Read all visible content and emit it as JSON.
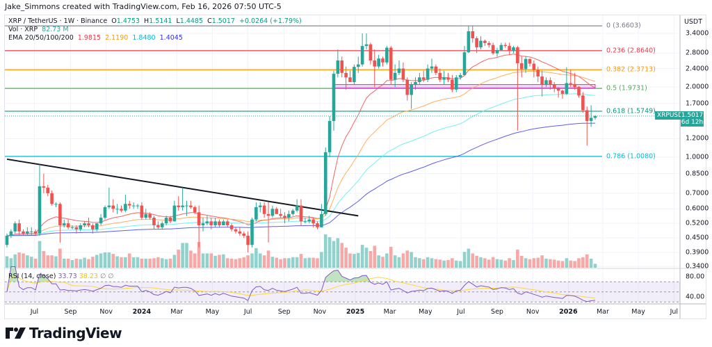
{
  "credit": "Jake_Simmons created with TradingView.com, Feb 16, 2026 07:50 UTC-5",
  "legend": {
    "symbol": "XRP / TetherUS · 1W · Binance",
    "o_label": "O",
    "o": "1.4753",
    "h_label": "H",
    "h": "1.5141",
    "l_label": "L",
    "l": "1.4485",
    "c_label": "C",
    "c": "1.5017",
    "change": "+0.0264 (+1.79%)",
    "vol_label": "Vol · XRP",
    "vol": "82.73 M",
    "ema_label": "EMA 20/50/100/200",
    "ema20": "1.9815",
    "ema50": "2.1190",
    "ema100": "1.8480",
    "ema200": "1.4045"
  },
  "rsi_legend": {
    "label": "RSI (14, close)",
    "rsi": "33.73",
    "rsi_ma": "38.23",
    "icon1": "∅",
    "icon2": "∅"
  },
  "price_axis": {
    "unit": "USDT",
    "ticks": [
      "3.4000",
      "2.8000",
      "2.4000",
      "2.0000",
      "1.7000",
      "1.2000",
      "1.0000",
      "0.8500",
      "0.7000",
      "0.6000",
      "0.5200",
      "0.4500",
      "0.3900",
      "0.3400"
    ]
  },
  "rsi_axis": {
    "ticks": [
      "80.00",
      "40.00"
    ]
  },
  "current_price": {
    "symbol": "XRPUSDT",
    "price": "1.5017",
    "countdown": "6d 12h"
  },
  "time_axis": [
    {
      "label": "Jul",
      "date": "2023-07-01"
    },
    {
      "label": "Sep",
      "date": "2023-09-01"
    },
    {
      "label": "Nov",
      "date": "2023-11-01"
    },
    {
      "label": "2024",
      "date": "2024-01-01"
    },
    {
      "label": "Mar",
      "date": "2024-03-01"
    },
    {
      "label": "May",
      "date": "2024-05-01"
    },
    {
      "label": "Jul",
      "date": "2024-07-01"
    },
    {
      "label": "Sep",
      "date": "2024-09-01"
    },
    {
      "label": "Nov",
      "date": "2024-11-01"
    },
    {
      "label": "2025",
      "date": "2025-01-01"
    },
    {
      "label": "Mar",
      "date": "2025-03-01"
    },
    {
      "label": "May",
      "date": "2025-05-01"
    },
    {
      "label": "Jul",
      "date": "2025-07-01"
    },
    {
      "label": "Sep",
      "date": "2025-09-01"
    },
    {
      "label": "Nov",
      "date": "2025-11-01"
    },
    {
      "label": "2026",
      "date": "2026-01-01"
    },
    {
      "label": "Mar",
      "date": "2026-03-01"
    },
    {
      "label": "May",
      "date": "2026-05-01"
    },
    {
      "label": "Jul",
      "date": "2026-07-01"
    }
  ],
  "fib_levels": [
    {
      "label": "0 (3.6603)",
      "price": 3.6603,
      "color": "#787b86"
    },
    {
      "label": "0.236 (2.8640)",
      "price": 2.864,
      "color": "#f23645"
    },
    {
      "label": "0.382 (2.3713)",
      "price": 2.3713,
      "color": "#ff9800"
    },
    {
      "label": "0.5 (1.9731)",
      "price": 1.9731,
      "color": "#4caf50"
    },
    {
      "label": "0.618 (1.5749)",
      "price": 1.5749,
      "color": "#089981"
    },
    {
      "label": "0.786 (1.0080)",
      "price": 1.008,
      "color": "#00bcd4"
    }
  ],
  "brand": "TradingView",
  "colors": {
    "up": "#26a69a",
    "down": "#ef5350",
    "ema20": "#f55252",
    "ema50": "#ffa54f",
    "ema100": "#66f0f0",
    "ema200": "#4b4bf0",
    "rsi": "#7e57c2",
    "rsi_ma": "#fdd835",
    "zone": "#c040c0",
    "trend": "#131722"
  },
  "chart_data": {
    "type": "candlestick",
    "interval": "1W",
    "first_week": "2023-05-15",
    "scale": "log",
    "ylim": [
      0.34,
      3.7
    ],
    "grid": true,
    "ohlc": [
      [
        0.42,
        0.47,
        0.41,
        0.46
      ],
      [
        0.46,
        0.49,
        0.45,
        0.48
      ],
      [
        0.48,
        0.53,
        0.47,
        0.52
      ],
      [
        0.52,
        0.54,
        0.46,
        0.48
      ],
      [
        0.48,
        0.49,
        0.46,
        0.47
      ],
      [
        0.47,
        0.5,
        0.46,
        0.48
      ],
      [
        0.48,
        0.5,
        0.46,
        0.48
      ],
      [
        0.48,
        0.49,
        0.46,
        0.47
      ],
      [
        0.47,
        0.93,
        0.46,
        0.75
      ],
      [
        0.75,
        0.85,
        0.7,
        0.74
      ],
      [
        0.74,
        0.76,
        0.68,
        0.7
      ],
      [
        0.7,
        0.72,
        0.62,
        0.63
      ],
      [
        0.63,
        0.64,
        0.61,
        0.63
      ],
      [
        0.63,
        0.64,
        0.43,
        0.51
      ],
      [
        0.51,
        0.54,
        0.5,
        0.52
      ],
      [
        0.52,
        0.54,
        0.49,
        0.5
      ],
      [
        0.5,
        0.51,
        0.49,
        0.5
      ],
      [
        0.5,
        0.51,
        0.47,
        0.49
      ],
      [
        0.49,
        0.52,
        0.48,
        0.51
      ],
      [
        0.51,
        0.53,
        0.5,
        0.52
      ],
      [
        0.52,
        0.55,
        0.5,
        0.51
      ],
      [
        0.51,
        0.52,
        0.47,
        0.49
      ],
      [
        0.49,
        0.52,
        0.48,
        0.52
      ],
      [
        0.52,
        0.57,
        0.51,
        0.55
      ],
      [
        0.55,
        0.62,
        0.54,
        0.61
      ],
      [
        0.61,
        0.74,
        0.6,
        0.62
      ],
      [
        0.62,
        0.66,
        0.58,
        0.6
      ],
      [
        0.6,
        0.63,
        0.57,
        0.6
      ],
      [
        0.6,
        0.62,
        0.58,
        0.59
      ],
      [
        0.59,
        0.69,
        0.58,
        0.63
      ],
      [
        0.63,
        0.65,
        0.6,
        0.62
      ],
      [
        0.62,
        0.64,
        0.6,
        0.62
      ],
      [
        0.62,
        0.63,
        0.6,
        0.62
      ],
      [
        0.62,
        0.64,
        0.54,
        0.55
      ],
      [
        0.55,
        0.6,
        0.54,
        0.57
      ],
      [
        0.57,
        0.58,
        0.54,
        0.55
      ],
      [
        0.55,
        0.56,
        0.49,
        0.51
      ],
      [
        0.51,
        0.53,
        0.49,
        0.5
      ],
      [
        0.5,
        0.53,
        0.49,
        0.52
      ],
      [
        0.52,
        0.56,
        0.51,
        0.55
      ],
      [
        0.55,
        0.56,
        0.52,
        0.53
      ],
      [
        0.53,
        0.65,
        0.53,
        0.62
      ],
      [
        0.62,
        0.68,
        0.59,
        0.61
      ],
      [
        0.61,
        0.74,
        0.59,
        0.62
      ],
      [
        0.62,
        0.65,
        0.56,
        0.62
      ],
      [
        0.62,
        0.65,
        0.6,
        0.61
      ],
      [
        0.61,
        0.62,
        0.57,
        0.58
      ],
      [
        0.58,
        0.62,
        0.41,
        0.51
      ],
      [
        0.51,
        0.55,
        0.48,
        0.52
      ],
      [
        0.52,
        0.56,
        0.51,
        0.53
      ],
      [
        0.53,
        0.55,
        0.49,
        0.51
      ],
      [
        0.51,
        0.55,
        0.5,
        0.53
      ],
      [
        0.53,
        0.54,
        0.5,
        0.51
      ],
      [
        0.51,
        0.54,
        0.51,
        0.53
      ],
      [
        0.53,
        0.54,
        0.5,
        0.51
      ],
      [
        0.51,
        0.52,
        0.48,
        0.49
      ],
      [
        0.49,
        0.5,
        0.47,
        0.48
      ],
      [
        0.48,
        0.5,
        0.46,
        0.47
      ],
      [
        0.47,
        0.48,
        0.45,
        0.46
      ],
      [
        0.46,
        0.48,
        0.39,
        0.42
      ],
      [
        0.42,
        0.55,
        0.41,
        0.54
      ],
      [
        0.54,
        0.64,
        0.53,
        0.61
      ],
      [
        0.61,
        0.64,
        0.58,
        0.62
      ],
      [
        0.62,
        0.64,
        0.55,
        0.57
      ],
      [
        0.57,
        0.64,
        0.43,
        0.56
      ],
      [
        0.56,
        0.62,
        0.55,
        0.6
      ],
      [
        0.6,
        0.61,
        0.57,
        0.57
      ],
      [
        0.57,
        0.6,
        0.55,
        0.56
      ],
      [
        0.56,
        0.58,
        0.52,
        0.55
      ],
      [
        0.55,
        0.59,
        0.53,
        0.57
      ],
      [
        0.57,
        0.6,
        0.56,
        0.59
      ],
      [
        0.59,
        0.66,
        0.58,
        0.62
      ],
      [
        0.62,
        0.66,
        0.51,
        0.53
      ],
      [
        0.53,
        0.55,
        0.52,
        0.53
      ],
      [
        0.53,
        0.56,
        0.52,
        0.54
      ],
      [
        0.54,
        0.55,
        0.5,
        0.52
      ],
      [
        0.52,
        0.53,
        0.49,
        0.5
      ],
      [
        0.5,
        0.63,
        0.5,
        0.57
      ],
      [
        0.57,
        1.1,
        0.56,
        1.05
      ],
      [
        1.05,
        1.5,
        1.0,
        1.43
      ],
      [
        1.43,
        2.35,
        1.3,
        2.28
      ],
      [
        2.28,
        2.9,
        2.2,
        2.6
      ],
      [
        2.6,
        2.7,
        2.2,
        2.3
      ],
      [
        2.3,
        2.45,
        1.95,
        2.2
      ],
      [
        2.2,
        2.35,
        2.1,
        2.1
      ],
      [
        2.1,
        2.5,
        2.05,
        2.44
      ],
      [
        2.44,
        2.7,
        2.3,
        2.5
      ],
      [
        2.5,
        3.4,
        2.45,
        3.0
      ],
      [
        3.0,
        3.4,
        2.9,
        3.05
      ],
      [
        3.05,
        3.1,
        2.5,
        2.6
      ],
      [
        2.6,
        2.9,
        2.0,
        2.45
      ],
      [
        2.45,
        2.75,
        2.4,
        2.65
      ],
      [
        2.65,
        2.7,
        2.45,
        2.55
      ],
      [
        2.55,
        3.0,
        2.5,
        2.95
      ],
      [
        2.95,
        3.0,
        2.05,
        2.15
      ],
      [
        2.15,
        2.5,
        2.0,
        2.3
      ],
      [
        2.3,
        2.6,
        2.25,
        2.4
      ],
      [
        2.4,
        2.55,
        2.1,
        2.15
      ],
      [
        2.15,
        2.2,
        1.75,
        1.85
      ],
      [
        1.85,
        2.1,
        1.61,
        2.05
      ],
      [
        2.05,
        2.2,
        1.95,
        2.1
      ],
      [
        2.1,
        2.3,
        2.05,
        2.2
      ],
      [
        2.2,
        2.35,
        2.1,
        2.15
      ],
      [
        2.15,
        2.5,
        2.1,
        2.4
      ],
      [
        2.4,
        2.65,
        2.3,
        2.45
      ],
      [
        2.45,
        2.5,
        2.25,
        2.3
      ],
      [
        2.3,
        2.4,
        2.1,
        2.15
      ],
      [
        2.15,
        2.35,
        2.05,
        2.2
      ],
      [
        2.2,
        2.3,
        2.1,
        2.15
      ],
      [
        2.15,
        2.25,
        1.9,
        1.95
      ],
      [
        1.95,
        2.25,
        1.9,
        2.2
      ],
      [
        2.2,
        2.3,
        2.15,
        2.25
      ],
      [
        2.25,
        3.0,
        2.25,
        2.82
      ],
      [
        2.82,
        3.66,
        2.8,
        3.47
      ],
      [
        3.47,
        3.66,
        3.1,
        3.24
      ],
      [
        3.24,
        3.3,
        2.8,
        2.96
      ],
      [
        2.96,
        3.3,
        2.9,
        3.16
      ],
      [
        3.16,
        3.2,
        3.0,
        3.09
      ],
      [
        3.09,
        3.15,
        2.95,
        3.03
      ],
      [
        3.03,
        3.1,
        2.75,
        2.79
      ],
      [
        2.79,
        2.95,
        2.7,
        2.88
      ],
      [
        2.88,
        3.1,
        2.85,
        3.03
      ],
      [
        3.03,
        3.1,
        2.95,
        3.0
      ],
      [
        3.0,
        3.1,
        2.75,
        2.86
      ],
      [
        2.86,
        3.0,
        2.8,
        2.96
      ],
      [
        2.96,
        3.0,
        1.3,
        2.53
      ],
      [
        2.53,
        2.7,
        2.2,
        2.39
      ],
      [
        2.39,
        2.7,
        2.3,
        2.64
      ],
      [
        2.64,
        2.65,
        2.45,
        2.52
      ],
      [
        2.52,
        2.6,
        2.2,
        2.37
      ],
      [
        2.37,
        2.45,
        2.1,
        2.22
      ],
      [
        2.22,
        2.35,
        1.82,
        2.05
      ],
      [
        2.05,
        2.2,
        2.0,
        2.14
      ],
      [
        2.14,
        2.2,
        1.95,
        2.05
      ],
      [
        2.05,
        2.1,
        1.9,
        1.97
      ],
      [
        1.97,
        2.0,
        1.8,
        1.93
      ],
      [
        1.93,
        1.95,
        1.78,
        1.87
      ],
      [
        1.87,
        2.43,
        1.85,
        2.08
      ],
      [
        2.08,
        2.38,
        2.0,
        2.06
      ],
      [
        2.06,
        2.3,
        1.95,
        2.0
      ],
      [
        2.0,
        2.02,
        1.8,
        1.84
      ],
      [
        1.84,
        1.9,
        1.55,
        1.59
      ],
      [
        1.59,
        1.65,
        1.12,
        1.43
      ],
      [
        1.43,
        1.67,
        1.35,
        1.4753
      ],
      [
        1.4753,
        1.5141,
        1.4485,
        1.5017
      ]
    ],
    "volume_millions": [
      240,
      200,
      280,
      320,
      300,
      260,
      230,
      190,
      560,
      350,
      260,
      260,
      240,
      400,
      190,
      190,
      160,
      190,
      180,
      210,
      180,
      230,
      270,
      300,
      320,
      320,
      290,
      240,
      220,
      220,
      300,
      220,
      220,
      190,
      190,
      190,
      200,
      220,
      200,
      180,
      190,
      270,
      380,
      520,
      520,
      360,
      300,
      540,
      300,
      300,
      300,
      250,
      270,
      280,
      200,
      190,
      180,
      200,
      220,
      260,
      300,
      410,
      300,
      260,
      360,
      230,
      210,
      180,
      200,
      200,
      220,
      220,
      290,
      200,
      210,
      210,
      200,
      330,
      700,
      640,
      560,
      620,
      520,
      420,
      300,
      290,
      310,
      480,
      420,
      350,
      460,
      260,
      230,
      300,
      440,
      260,
      220,
      300,
      360,
      330,
      220,
      200,
      180,
      220,
      200,
      180,
      170,
      150,
      160,
      200,
      150,
      140,
      330,
      400,
      300,
      250,
      220,
      200,
      170,
      220,
      180,
      170,
      150,
      200,
      160,
      380,
      250,
      200,
      180,
      200,
      210,
      260,
      190,
      180,
      170,
      150,
      140,
      200,
      150,
      140,
      200,
      220,
      280,
      190,
      82.73
    ],
    "ema_periods": [
      20,
      50,
      100,
      200
    ],
    "rsi_period": 14,
    "rsi_levels": [
      70,
      50,
      30
    ],
    "rsi_ylim": [
      20,
      100
    ],
    "trendline": {
      "from": {
        "date": "2023-05-15",
        "price": 0.98
      },
      "to": {
        "date": "2025-01-06",
        "price": 0.56
      }
    },
    "zone": {
      "from_date": "2024-11-25",
      "to_date": "2026-02-16",
      "low": 1.98,
      "high": 2.05
    }
  }
}
